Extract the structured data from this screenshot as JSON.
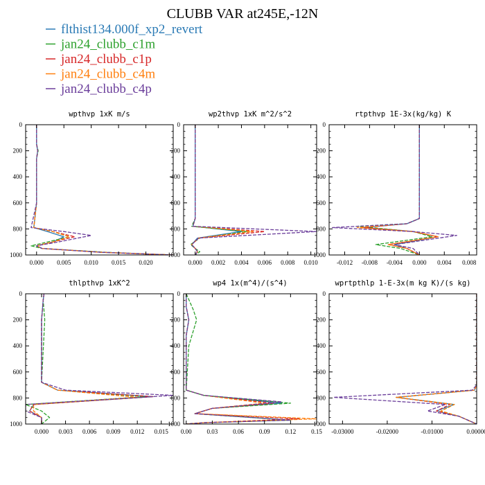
{
  "figure": {
    "title": "CLUBB VAR at245E,-12N",
    "legend": [
      {
        "label": "flthist134.000f_xp2_revert",
        "color": "#2a7ab5"
      },
      {
        "label": "jan24_clubb_c1m",
        "color": "#2ca02c"
      },
      {
        "label": "jan24_clubb_c1p",
        "color": "#d62728"
      },
      {
        "label": "jan24_clubb_c4m",
        "color": "#ff7f0e"
      },
      {
        "label": "jan24_clubb_c4p",
        "color": "#6a3d9a"
      }
    ]
  },
  "chart_data": [
    {
      "type": "line",
      "title": "wpthvp  1xK m/s",
      "xlim": [
        -0.002,
        0.025
      ],
      "ylim": [
        1000,
        0
      ],
      "xticks": [
        0.0,
        0.005,
        0.01,
        0.015,
        0.02
      ],
      "xtick_labels": [
        "0.000",
        "0.005",
        "0.010",
        "0.015",
        "0.020"
      ],
      "yticks": [
        0,
        200,
        400,
        600,
        800,
        1000
      ],
      "ytick_labels": [
        "0",
        "200",
        "400",
        "600",
        "800",
        "1000"
      ],
      "series": [
        {
          "color": "#2a7ab5",
          "dashed": false,
          "x": [
            0.0,
            0.0,
            0.0002,
            0.0,
            0.0,
            -0.0005,
            0.002,
            0.005,
            0.003,
            0.0,
            0.001,
            0.012,
            0.025
          ],
          "y": [
            0,
            150,
            200,
            260,
            600,
            790,
            820,
            860,
            900,
            930,
            950,
            980,
            1000
          ]
        },
        {
          "color": "#2ca02c",
          "dashed": true,
          "x": [
            0.0,
            0.0,
            0.0003,
            0.0,
            0.0,
            -0.0005,
            0.003,
            0.006,
            0.002,
            -0.001,
            0.001,
            0.013,
            0.025
          ],
          "y": [
            0,
            150,
            200,
            260,
            600,
            790,
            820,
            860,
            900,
            930,
            950,
            980,
            1000
          ]
        },
        {
          "color": "#d62728",
          "dashed": true,
          "x": [
            0.0,
            0.0,
            0.0002,
            0.0,
            0.0,
            -0.0005,
            0.003,
            0.007,
            0.003,
            0.0,
            0.001,
            0.012,
            0.025
          ],
          "y": [
            0,
            150,
            200,
            260,
            600,
            790,
            820,
            860,
            900,
            930,
            950,
            980,
            1000
          ]
        },
        {
          "color": "#ff7f0e",
          "dashed": true,
          "x": [
            0.0,
            0.0,
            0.0002,
            0.0,
            0.0,
            -0.0005,
            0.003,
            0.006,
            0.003,
            0.0,
            0.001,
            0.012,
            0.025
          ],
          "y": [
            0,
            150,
            200,
            260,
            600,
            790,
            820,
            860,
            900,
            930,
            950,
            980,
            1000
          ]
        },
        {
          "color": "#6a3d9a",
          "dashed": true,
          "x": [
            0.0,
            0.0,
            0.0002,
            0.0,
            0.0,
            -0.001,
            0.005,
            0.01,
            0.004,
            0.0,
            0.001,
            0.012,
            0.025
          ],
          "y": [
            0,
            150,
            200,
            260,
            600,
            790,
            820,
            850,
            900,
            930,
            950,
            980,
            1000
          ]
        }
      ]
    },
    {
      "type": "line",
      "title": "wp2thvp  1xK m^2/s^2",
      "xlim": [
        -0.001,
        0.0105
      ],
      "ylim": [
        1000,
        0
      ],
      "xticks": [
        0.0,
        0.002,
        0.004,
        0.006,
        0.008,
        0.01
      ],
      "xtick_labels": [
        "0.000",
        "0.002",
        "0.004",
        "0.006",
        "0.008",
        "0.010"
      ],
      "yticks": [
        0,
        200,
        400,
        600,
        800,
        1000
      ],
      "ytick_labels": [
        "0",
        "200",
        "400",
        "600",
        "800",
        "1000"
      ],
      "series": [
        {
          "color": "#2a7ab5",
          "dashed": false,
          "x": [
            0.0,
            0.0,
            0.0,
            -0.0002,
            0.004,
            0.0002,
            -0.0003,
            0.0,
            0.0002,
            0.0
          ],
          "y": [
            0,
            300,
            720,
            780,
            820,
            870,
            920,
            950,
            975,
            1000
          ]
        },
        {
          "color": "#2ca02c",
          "dashed": true,
          "x": [
            0.0,
            0.0,
            0.0,
            -0.0003,
            0.0045,
            0.0004,
            -0.0004,
            0.0,
            0.0004,
            0.0
          ],
          "y": [
            0,
            300,
            720,
            780,
            820,
            870,
            920,
            950,
            975,
            1000
          ]
        },
        {
          "color": "#d62728",
          "dashed": true,
          "x": [
            0.0,
            0.0,
            0.0,
            -0.0002,
            0.006,
            0.0003,
            -0.0003,
            0.0,
            0.0002,
            0.0
          ],
          "y": [
            0,
            300,
            720,
            780,
            820,
            870,
            920,
            950,
            975,
            1000
          ]
        },
        {
          "color": "#ff7f0e",
          "dashed": true,
          "x": [
            0.0,
            0.0,
            0.0,
            -0.0002,
            0.005,
            0.0003,
            -0.0003,
            0.0,
            0.0002,
            0.0
          ],
          "y": [
            0,
            300,
            720,
            780,
            820,
            870,
            920,
            950,
            975,
            1000
          ]
        },
        {
          "color": "#6a3d9a",
          "dashed": true,
          "x": [
            0.0,
            0.0,
            0.0,
            -0.0002,
            0.0105,
            0.0003,
            -0.0003,
            0.0,
            0.0002,
            0.0
          ],
          "y": [
            0,
            300,
            720,
            780,
            820,
            870,
            920,
            950,
            975,
            1000
          ]
        }
      ]
    },
    {
      "type": "line",
      "title": "rtpthvp  1E-3x(kg/kg) K",
      "xlim": [
        -0.0145,
        0.0092
      ],
      "ylim": [
        1000,
        0
      ],
      "xticks": [
        -0.012,
        -0.008,
        -0.004,
        0.0,
        0.004,
        0.008
      ],
      "xtick_labels": [
        "-0.012",
        "-0.008",
        "-0.004",
        "0.000",
        "0.004",
        "0.008"
      ],
      "yticks": [
        0,
        200,
        400,
        600,
        800,
        1000
      ],
      "ytick_labels": [
        "0",
        "200",
        "400",
        "600",
        "800",
        "1000"
      ],
      "series": [
        {
          "color": "#2a7ab5",
          "dashed": false,
          "x": [
            0.0,
            0.0,
            0.0,
            -0.002,
            -0.009,
            -0.001,
            0.003,
            -0.004,
            -0.002,
            0.0
          ],
          "y": [
            0,
            600,
            720,
            760,
            790,
            820,
            860,
            920,
            950,
            1000
          ]
        },
        {
          "color": "#2ca02c",
          "dashed": true,
          "x": [
            0.0,
            0.0,
            0.0,
            -0.002,
            -0.01,
            -0.001,
            0.002,
            -0.007,
            -0.003,
            0.0
          ],
          "y": [
            0,
            600,
            720,
            760,
            780,
            820,
            860,
            920,
            950,
            1000
          ]
        },
        {
          "color": "#d62728",
          "dashed": true,
          "x": [
            0.0,
            0.0,
            0.0,
            -0.002,
            -0.009,
            -0.001,
            0.003,
            -0.005,
            -0.002,
            0.0
          ],
          "y": [
            0,
            600,
            720,
            760,
            790,
            820,
            860,
            920,
            950,
            1000
          ]
        },
        {
          "color": "#ff7f0e",
          "dashed": true,
          "x": [
            0.0,
            0.0,
            0.0,
            -0.002,
            -0.01,
            -0.001,
            0.003,
            -0.005,
            -0.002,
            0.0
          ],
          "y": [
            0,
            600,
            720,
            760,
            790,
            820,
            860,
            920,
            950,
            1000
          ]
        },
        {
          "color": "#6a3d9a",
          "dashed": true,
          "x": [
            0.0,
            0.0,
            0.0,
            -0.002,
            -0.014,
            -0.001,
            0.006,
            -0.004,
            -0.001,
            0.0
          ],
          "y": [
            0,
            600,
            720,
            760,
            790,
            820,
            850,
            920,
            950,
            1000
          ]
        }
      ]
    },
    {
      "type": "line",
      "title": "thlpthvp  1xK^2",
      "xlim": [
        -0.002,
        0.0165
      ],
      "ylim": [
        1000,
        0
      ],
      "xticks": [
        0.0,
        0.003,
        0.006,
        0.009,
        0.012,
        0.015
      ],
      "xtick_labels": [
        "0.000",
        "0.003",
        "0.006",
        "0.009",
        "0.012",
        "0.015"
      ],
      "yticks": [
        0,
        200,
        400,
        600,
        800,
        1000
      ],
      "ytick_labels": [
        "0",
        "200",
        "400",
        "600",
        "800",
        "1000"
      ],
      "series": [
        {
          "color": "#2a7ab5",
          "dashed": false,
          "x": [
            0.0003,
            0.0002,
            0.0,
            0.0,
            0.002,
            0.014,
            -0.001,
            -0.0015,
            0.0,
            0.0
          ],
          "y": [
            0,
            50,
            200,
            680,
            740,
            790,
            850,
            900,
            950,
            1000
          ]
        },
        {
          "color": "#2ca02c",
          "dashed": true,
          "x": [
            0.0003,
            0.0002,
            0.0004,
            0.0,
            0.002,
            0.013,
            -0.002,
            0.0,
            0.001,
            0.0
          ],
          "y": [
            0,
            50,
            200,
            680,
            740,
            790,
            850,
            900,
            950,
            1000
          ]
        },
        {
          "color": "#d62728",
          "dashed": true,
          "x": [
            0.0003,
            0.0002,
            0.0,
            0.0,
            0.002,
            0.014,
            -0.001,
            -0.0015,
            0.0,
            0.0
          ],
          "y": [
            0,
            50,
            200,
            680,
            740,
            790,
            850,
            900,
            950,
            1000
          ]
        },
        {
          "color": "#ff7f0e",
          "dashed": true,
          "x": [
            0.0003,
            0.0002,
            0.0,
            0.0,
            0.002,
            0.012,
            -0.001,
            -0.001,
            0.0,
            0.0
          ],
          "y": [
            0,
            50,
            200,
            680,
            740,
            795,
            850,
            900,
            950,
            1000
          ]
        },
        {
          "color": "#6a3d9a",
          "dashed": true,
          "x": [
            0.0003,
            0.0002,
            0.0,
            0.0,
            0.003,
            0.0165,
            -0.002,
            -0.002,
            0.0,
            0.0
          ],
          "y": [
            0,
            50,
            200,
            680,
            740,
            780,
            850,
            900,
            950,
            1000
          ]
        }
      ]
    },
    {
      "type": "line",
      "title": "wp4  1x(m^4)/(s^4)",
      "xlim": [
        -0.003,
        0.15
      ],
      "ylim": [
        1000,
        0
      ],
      "xticks": [
        0.0,
        0.03,
        0.06,
        0.09,
        0.12,
        0.15
      ],
      "xtick_labels": [
        "0.00",
        "0.03",
        "0.06",
        "0.09",
        "0.12",
        "0.15"
      ],
      "yticks": [
        0,
        200,
        400,
        600,
        800,
        1000
      ],
      "ytick_labels": [
        "0",
        "200",
        "400",
        "600",
        "800",
        "1000"
      ],
      "series": [
        {
          "color": "#2a7ab5",
          "dashed": false,
          "x": [
            0.0,
            0.0,
            0.003,
            0.0,
            0.0,
            0.02,
            0.11,
            0.03,
            0.01,
            0.12,
            0.02,
            0.0
          ],
          "y": [
            0,
            100,
            200,
            320,
            740,
            780,
            840,
            880,
            920,
            970,
            990,
            1000
          ]
        },
        {
          "color": "#2ca02c",
          "dashed": true,
          "x": [
            0.0,
            0.008,
            0.012,
            0.003,
            0.0,
            0.02,
            0.12,
            0.03,
            0.01,
            0.12,
            0.02,
            0.0
          ],
          "y": [
            0,
            120,
            200,
            400,
            740,
            780,
            840,
            880,
            920,
            970,
            990,
            1000
          ]
        },
        {
          "color": "#d62728",
          "dashed": true,
          "x": [
            0.0,
            0.0,
            0.003,
            0.0,
            0.0,
            0.02,
            0.1,
            0.03,
            0.01,
            0.13,
            0.02,
            0.0
          ],
          "y": [
            0,
            100,
            200,
            320,
            740,
            780,
            840,
            880,
            920,
            960,
            990,
            1000
          ]
        },
        {
          "color": "#ff7f0e",
          "dashed": true,
          "x": [
            0.0,
            0.0,
            0.003,
            0.0,
            0.0,
            0.02,
            0.09,
            0.03,
            0.01,
            0.15,
            0.02,
            0.0
          ],
          "y": [
            0,
            100,
            200,
            320,
            740,
            780,
            840,
            880,
            920,
            960,
            990,
            1000
          ]
        },
        {
          "color": "#6a3d9a",
          "dashed": true,
          "x": [
            0.0,
            0.0,
            0.003,
            0.0,
            0.0,
            0.02,
            0.11,
            0.03,
            0.01,
            0.12,
            0.02,
            0.0
          ],
          "y": [
            0,
            100,
            200,
            320,
            740,
            780,
            830,
            880,
            920,
            970,
            990,
            1000
          ]
        }
      ]
    },
    {
      "type": "line",
      "title": "wprtpthlp  1-E-3x(m kg K)/(s kg)",
      "xlim": [
        -0.033,
        0.0
      ],
      "ylim": [
        1000,
        0
      ],
      "xticks": [
        -0.03,
        -0.02,
        -0.01,
        0.0
      ],
      "xtick_labels": [
        "-0.03000",
        "-0.02000",
        "-0.01000",
        "0.00000"
      ],
      "yticks": [
        0,
        200,
        400,
        600,
        800,
        1000
      ],
      "ytick_labels": [
        "0",
        "200",
        "400",
        "600",
        "800",
        "1000"
      ],
      "series": [
        {
          "color": "#2a7ab5",
          "dashed": false,
          "x": [
            0.0,
            0.0,
            -0.0005,
            -0.018,
            -0.005,
            -0.009,
            -0.004,
            0.0
          ],
          "y": [
            0,
            700,
            740,
            795,
            850,
            900,
            940,
            1000
          ]
        },
        {
          "color": "#2ca02c",
          "dashed": true,
          "x": [
            0.0,
            0.0,
            -0.0005,
            -0.018,
            -0.005,
            -0.008,
            -0.004,
            0.0
          ],
          "y": [
            0,
            700,
            740,
            795,
            850,
            900,
            940,
            1000
          ]
        },
        {
          "color": "#d62728",
          "dashed": true,
          "x": [
            0.0,
            0.0,
            -0.0005,
            -0.018,
            -0.006,
            -0.009,
            -0.004,
            0.0
          ],
          "y": [
            0,
            700,
            740,
            795,
            850,
            900,
            940,
            1000
          ]
        },
        {
          "color": "#ff7f0e",
          "dashed": true,
          "x": [
            0.0,
            0.0,
            -0.0005,
            -0.018,
            -0.005,
            -0.008,
            -0.004,
            0.0
          ],
          "y": [
            0,
            700,
            740,
            795,
            850,
            900,
            940,
            1000
          ]
        },
        {
          "color": "#6a3d9a",
          "dashed": true,
          "x": [
            0.0,
            0.0,
            -0.001,
            -0.032,
            -0.007,
            -0.011,
            -0.004,
            0.0
          ],
          "y": [
            0,
            700,
            740,
            795,
            850,
            900,
            940,
            1000
          ]
        }
      ]
    }
  ]
}
